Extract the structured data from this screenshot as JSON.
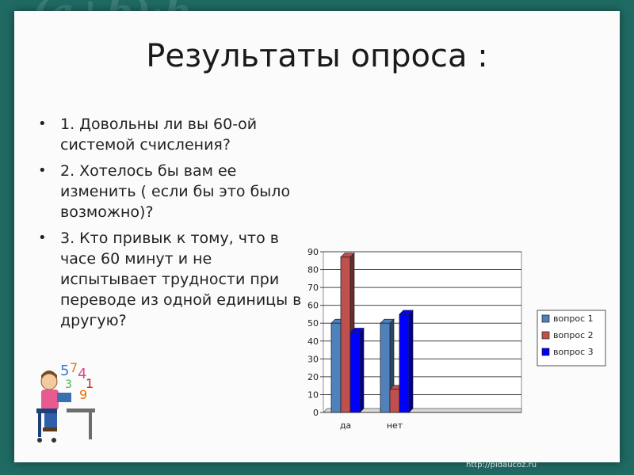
{
  "slide": {
    "title": "Результаты опроса :",
    "questions": [
      "1. Довольны ли вы 60-ой системой счисления?",
      "2. Хотелось бы вам  ее изменить ( если бы это было возможно)?",
      "3. Кто привык к тому, что в часе 60 минут и не испытывает трудности при переводе из одной единицы в другую?"
    ],
    "background_formula": "(a+b)·h",
    "footer_url": "http://pidaucoz.ru"
  },
  "colors": {
    "background": "#1f6b63",
    "series": [
      "#4f81bd",
      "#c0504d",
      "#0000ff"
    ]
  },
  "chart_data": {
    "type": "bar",
    "categories": [
      "да",
      "нет"
    ],
    "series": [
      {
        "name": "вопрос 1",
        "values": [
          50,
          50
        ]
      },
      {
        "name": "вопрос 2",
        "values": [
          87,
          13
        ]
      },
      {
        "name": "вопрос 3",
        "values": [
          45,
          55
        ]
      }
    ],
    "ylim": [
      0,
      90
    ],
    "yticks": [
      0,
      10,
      20,
      30,
      40,
      50,
      60,
      70,
      80,
      90
    ],
    "grid": true,
    "legend": "right",
    "style": "3d-column"
  }
}
